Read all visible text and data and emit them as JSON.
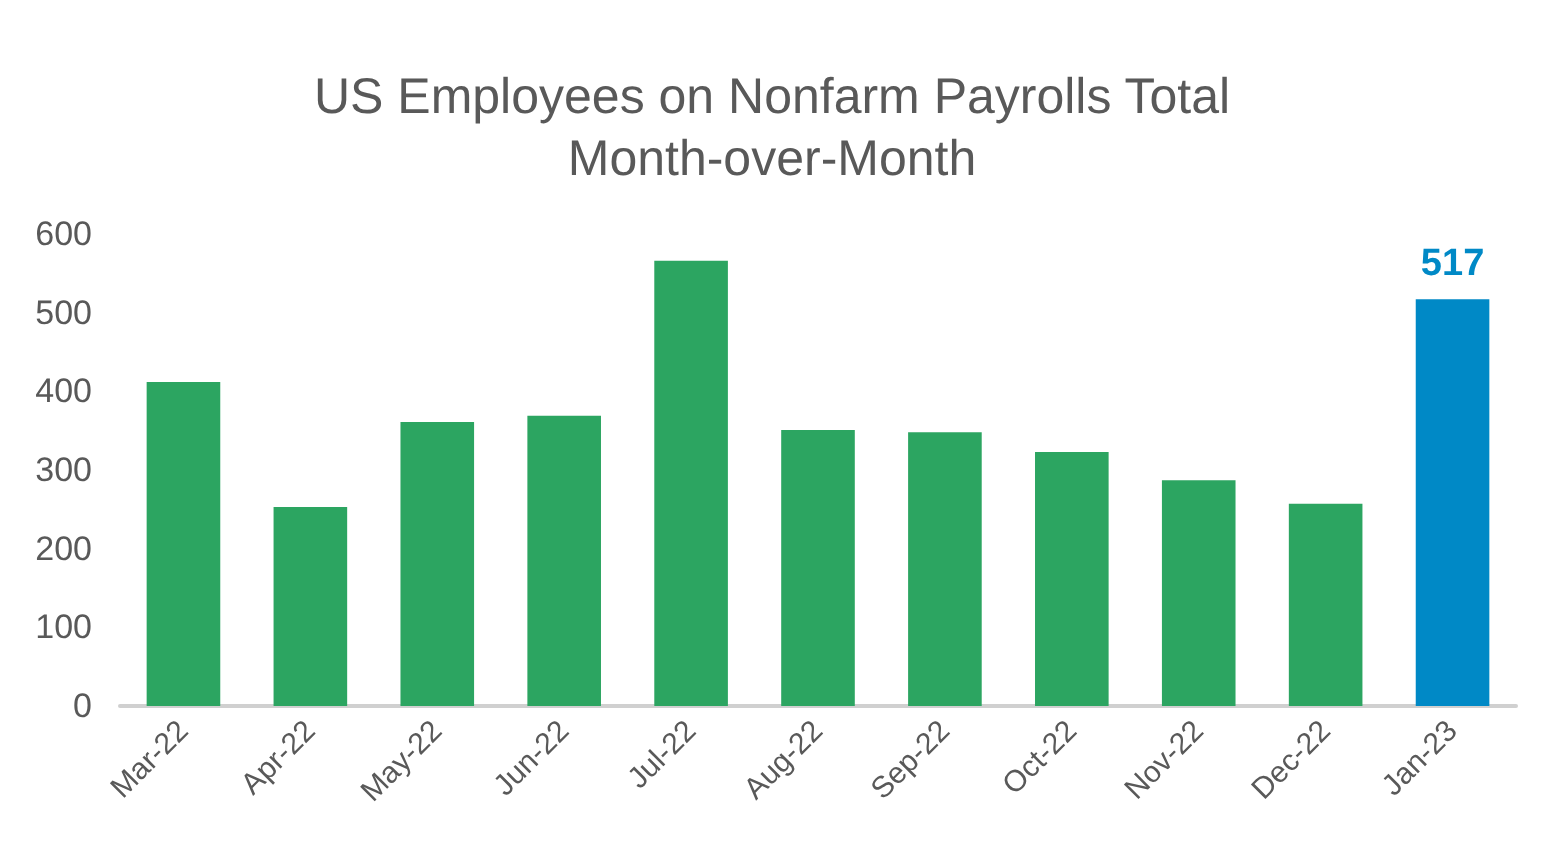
{
  "chart_data": {
    "type": "bar",
    "title": "US Employees on Nonfarm Payrolls Total\nMonth-over-Month",
    "categories": [
      "Mar-22",
      "Apr-22",
      "May-22",
      "Jun-22",
      "Jul-22",
      "Aug-22",
      "Sep-22",
      "Oct-22",
      "Nov-22",
      "Dec-22",
      "Jan-23"
    ],
    "values": [
      412,
      253,
      361,
      369,
      566,
      351,
      348,
      323,
      287,
      257,
      517
    ],
    "colors": [
      "#2ca561",
      "#2ca561",
      "#2ca561",
      "#2ca561",
      "#2ca561",
      "#2ca561",
      "#2ca561",
      "#2ca561",
      "#2ca561",
      "#2ca561",
      "#0089c6"
    ],
    "value_labels": [
      null,
      null,
      null,
      null,
      null,
      null,
      null,
      null,
      null,
      null,
      "517"
    ],
    "ylim": [
      0,
      600
    ],
    "yticks": [
      0,
      100,
      200,
      300,
      400,
      500,
      600
    ],
    "grid": false
  }
}
